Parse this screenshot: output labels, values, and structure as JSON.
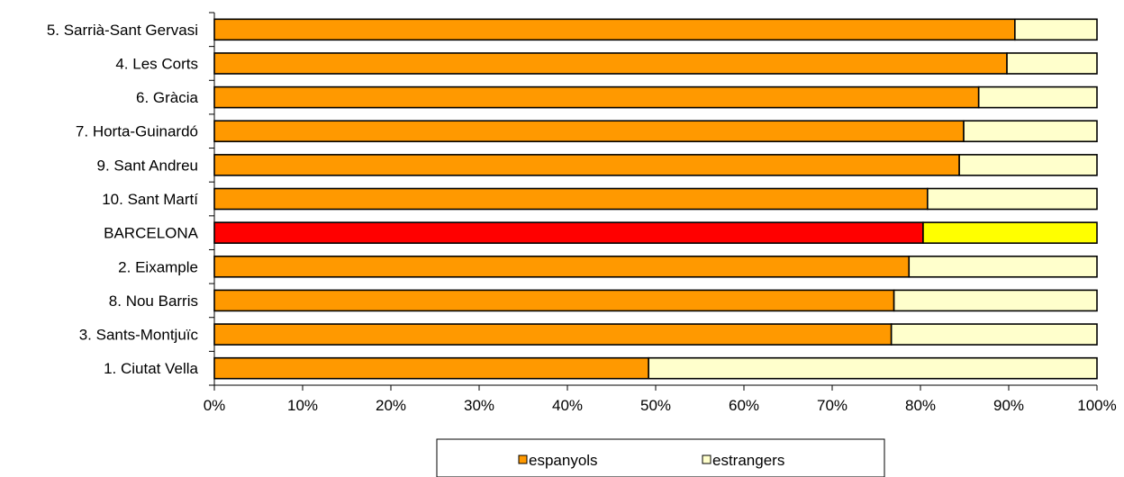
{
  "chart_data": {
    "type": "bar",
    "orientation": "horizontal",
    "stacked": true,
    "percent": true,
    "categories": [
      "5. Sarrià-Sant Gervasi",
      "4. Les Corts",
      "6. Gràcia",
      "7. Horta-Guinardó",
      "9. Sant Andreu",
      "10. Sant Martí",
      "BARCELONA",
      "2. Eixample",
      "8. Nou Barris",
      "3. Sants-Montjuïc",
      "1. Ciutat Vella"
    ],
    "series": [
      {
        "name": "espanyols",
        "color": "#FF9900",
        "values": [
          90.7,
          89.8,
          86.6,
          84.9,
          84.4,
          80.8,
          80.3,
          78.7,
          77.0,
          76.7,
          49.2
        ]
      },
      {
        "name": "estrangers",
        "color": "#FFFFCC",
        "values": [
          9.3,
          10.2,
          13.4,
          15.1,
          15.6,
          19.2,
          19.7,
          21.3,
          23.0,
          23.3,
          50.8
        ]
      }
    ],
    "highlight": {
      "category": "BARCELONA",
      "colors": [
        "#FF0000",
        "#FFFF00"
      ]
    },
    "xlim": [
      0,
      100
    ],
    "xticks": [
      "0%",
      "10%",
      "20%",
      "30%",
      "40%",
      "50%",
      "60%",
      "70%",
      "80%",
      "90%",
      "100%"
    ],
    "grid": false,
    "legend_position": "bottom",
    "title": "",
    "xlabel": "",
    "ylabel": ""
  }
}
